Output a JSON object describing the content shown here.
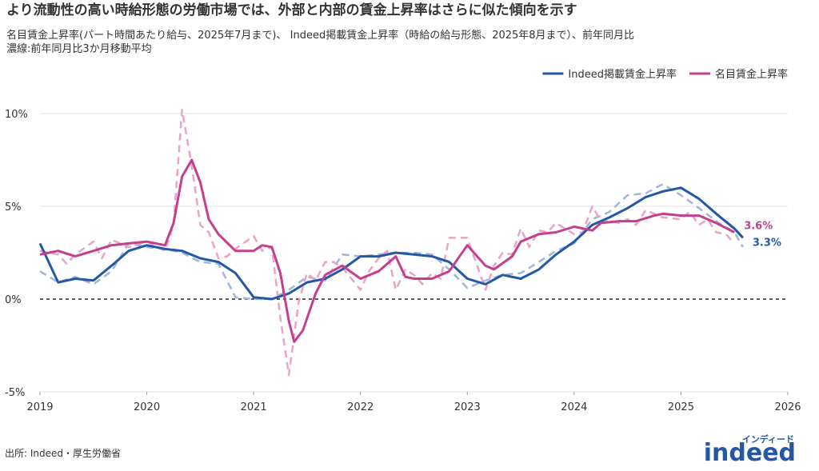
{
  "chart_data": {
    "type": "line",
    "title": "より流動性の高い時給形態の労働市場では、外部と内部の賃金上昇率はさらに似た傾向を示す",
    "subtitle": [
      "名目賃金上昇率(パート時間あたり給与、2025年7月まで)、 Indeed掲載賃金上昇率（時給の給与形態、2025年8月まで）、前年同月比",
      "濃線:前年同月比3か月移動平均"
    ],
    "source": "出所: Indeed・厚生労働省",
    "logo": {
      "text": "indeed",
      "kana": "インディード"
    },
    "xlim": [
      2019,
      2026
    ],
    "xticks": [
      2019,
      2020,
      2021,
      2022,
      2023,
      2024,
      2025,
      2026
    ],
    "ylim": [
      -5,
      10.5
    ],
    "yticks": [
      {
        "value": -5,
        "label": "-5%"
      },
      {
        "value": 0,
        "label": "0%"
      },
      {
        "value": 5,
        "label": "5%"
      },
      {
        "value": 10,
        "label": "10%"
      }
    ],
    "grid": true,
    "legend": "top-right",
    "series": [
      {
        "name": "Indeed掲載賃金上昇率",
        "color": "#2557a7",
        "end_label": "3.3%",
        "x": [
          2019.0,
          2019.17,
          2019.33,
          2019.5,
          2019.67,
          2019.83,
          2020.0,
          2020.17,
          2020.33,
          2020.5,
          2020.67,
          2020.83,
          2021.0,
          2021.17,
          2021.33,
          2021.5,
          2021.67,
          2021.83,
          2022.0,
          2022.17,
          2022.33,
          2022.5,
          2022.67,
          2022.83,
          2023.0,
          2023.17,
          2023.33,
          2023.5,
          2023.67,
          2023.83,
          2024.0,
          2024.17,
          2024.33,
          2024.5,
          2024.67,
          2024.83,
          2025.0,
          2025.17,
          2025.33,
          2025.5,
          2025.58
        ],
        "values": [
          3.0,
          0.9,
          1.1,
          1.0,
          1.8,
          2.6,
          2.9,
          2.7,
          2.6,
          2.2,
          2.0,
          1.4,
          0.1,
          0.0,
          0.3,
          0.9,
          1.1,
          1.6,
          2.3,
          2.3,
          2.5,
          2.4,
          2.3,
          2.0,
          1.1,
          0.8,
          1.3,
          1.1,
          1.6,
          2.4,
          3.1,
          4.0,
          4.4,
          4.9,
          5.5,
          5.8,
          6.0,
          5.4,
          4.6,
          3.8,
          3.3
        ],
        "raw": {
          "color": "#9fb6da",
          "x": [
            2019.0,
            2019.17,
            2019.33,
            2019.5,
            2019.67,
            2019.83,
            2020.0,
            2020.17,
            2020.33,
            2020.5,
            2020.67,
            2020.83,
            2021.0,
            2021.17,
            2021.33,
            2021.5,
            2021.67,
            2021.83,
            2022.0,
            2022.17,
            2022.33,
            2022.5,
            2022.67,
            2022.83,
            2023.0,
            2023.17,
            2023.33,
            2023.5,
            2023.67,
            2023.83,
            2024.0,
            2024.17,
            2024.33,
            2024.5,
            2024.67,
            2024.83,
            2025.0,
            2025.17,
            2025.33,
            2025.5,
            2025.58
          ],
          "values": [
            1.5,
            0.9,
            1.2,
            0.8,
            1.5,
            3.0,
            2.8,
            2.7,
            2.5,
            2.0,
            1.9,
            0.1,
            0.0,
            0.0,
            0.5,
            1.2,
            1.0,
            2.4,
            2.3,
            2.4,
            2.5,
            2.5,
            2.4,
            1.6,
            0.6,
            1.0,
            1.3,
            1.4,
            2.0,
            2.6,
            3.0,
            4.3,
            4.7,
            5.6,
            5.7,
            6.2,
            5.6,
            4.9,
            4.2,
            3.6,
            2.8
          ]
        }
      },
      {
        "name": "名目賃金上昇率",
        "color": "#c5408c",
        "end_label": "3.6%",
        "x": [
          2019.0,
          2019.17,
          2019.33,
          2019.5,
          2019.67,
          2019.83,
          2020.0,
          2020.17,
          2020.25,
          2020.33,
          2020.42,
          2020.5,
          2020.58,
          2020.67,
          2020.83,
          2021.0,
          2021.08,
          2021.17,
          2021.25,
          2021.33,
          2021.38,
          2021.46,
          2021.58,
          2021.67,
          2021.83,
          2022.0,
          2022.17,
          2022.33,
          2022.42,
          2022.5,
          2022.67,
          2022.83,
          2023.0,
          2023.17,
          2023.25,
          2023.42,
          2023.5,
          2023.67,
          2023.83,
          2024.0,
          2024.17,
          2024.25,
          2024.42,
          2024.58,
          2024.75,
          2024.83,
          2025.0,
          2025.17,
          2025.33,
          2025.5
        ],
        "values": [
          2.4,
          2.6,
          2.3,
          2.6,
          2.9,
          3.0,
          3.1,
          2.9,
          4.1,
          6.6,
          7.5,
          6.3,
          4.3,
          3.5,
          2.6,
          2.6,
          2.9,
          2.8,
          1.4,
          -1.2,
          -2.3,
          -1.7,
          0.3,
          1.3,
          1.8,
          1.1,
          1.5,
          2.3,
          1.2,
          1.1,
          1.1,
          1.5,
          2.9,
          1.8,
          1.6,
          2.3,
          3.1,
          3.5,
          3.6,
          3.9,
          3.7,
          4.1,
          4.2,
          4.2,
          4.5,
          4.6,
          4.5,
          4.5,
          4.1,
          3.6
        ],
        "raw": {
          "color": "#e9a3c8",
          "x": [
            2019.0,
            2019.17,
            2019.25,
            2019.33,
            2019.5,
            2019.58,
            2019.67,
            2019.83,
            2020.0,
            2020.17,
            2020.25,
            2020.33,
            2020.42,
            2020.5,
            2020.58,
            2020.67,
            2020.75,
            2020.83,
            2021.0,
            2021.08,
            2021.17,
            2021.25,
            2021.33,
            2021.42,
            2021.5,
            2021.58,
            2021.67,
            2021.75,
            2021.83,
            2022.0,
            2022.08,
            2022.17,
            2022.25,
            2022.33,
            2022.42,
            2022.5,
            2022.58,
            2022.67,
            2022.75,
            2022.83,
            2023.0,
            2023.08,
            2023.17,
            2023.25,
            2023.33,
            2023.42,
            2023.5,
            2023.58,
            2023.67,
            2023.75,
            2023.83,
            2024.0,
            2024.08,
            2024.17,
            2024.25,
            2024.33,
            2024.42,
            2024.5,
            2024.58,
            2024.67,
            2024.75,
            2024.83,
            2025.0,
            2025.08,
            2025.17,
            2025.25,
            2025.33,
            2025.42,
            2025.5
          ],
          "values": [
            2.6,
            2.4,
            1.9,
            2.4,
            3.1,
            2.2,
            3.2,
            2.8,
            3.1,
            2.6,
            4.0,
            10.2,
            7.2,
            4.0,
            3.6,
            2.2,
            2.3,
            2.7,
            3.4,
            2.6,
            2.8,
            -1.0,
            -4.1,
            -0.2,
            1.4,
            1.0,
            2.0,
            2.0,
            1.7,
            0.5,
            1.5,
            2.2,
            2.6,
            0.5,
            1.6,
            1.3,
            0.8,
            1.4,
            1.1,
            3.3,
            3.3,
            2.0,
            0.5,
            1.8,
            2.5,
            2.4,
            3.8,
            2.8,
            3.7,
            3.6,
            4.1,
            3.5,
            3.6,
            5.0,
            4.2,
            4.2,
            4.1,
            4.3,
            4.0,
            4.8,
            4.6,
            4.4,
            4.3,
            4.7,
            4.0,
            4.3,
            3.6,
            3.5,
            3.0
          ]
        }
      }
    ]
  }
}
